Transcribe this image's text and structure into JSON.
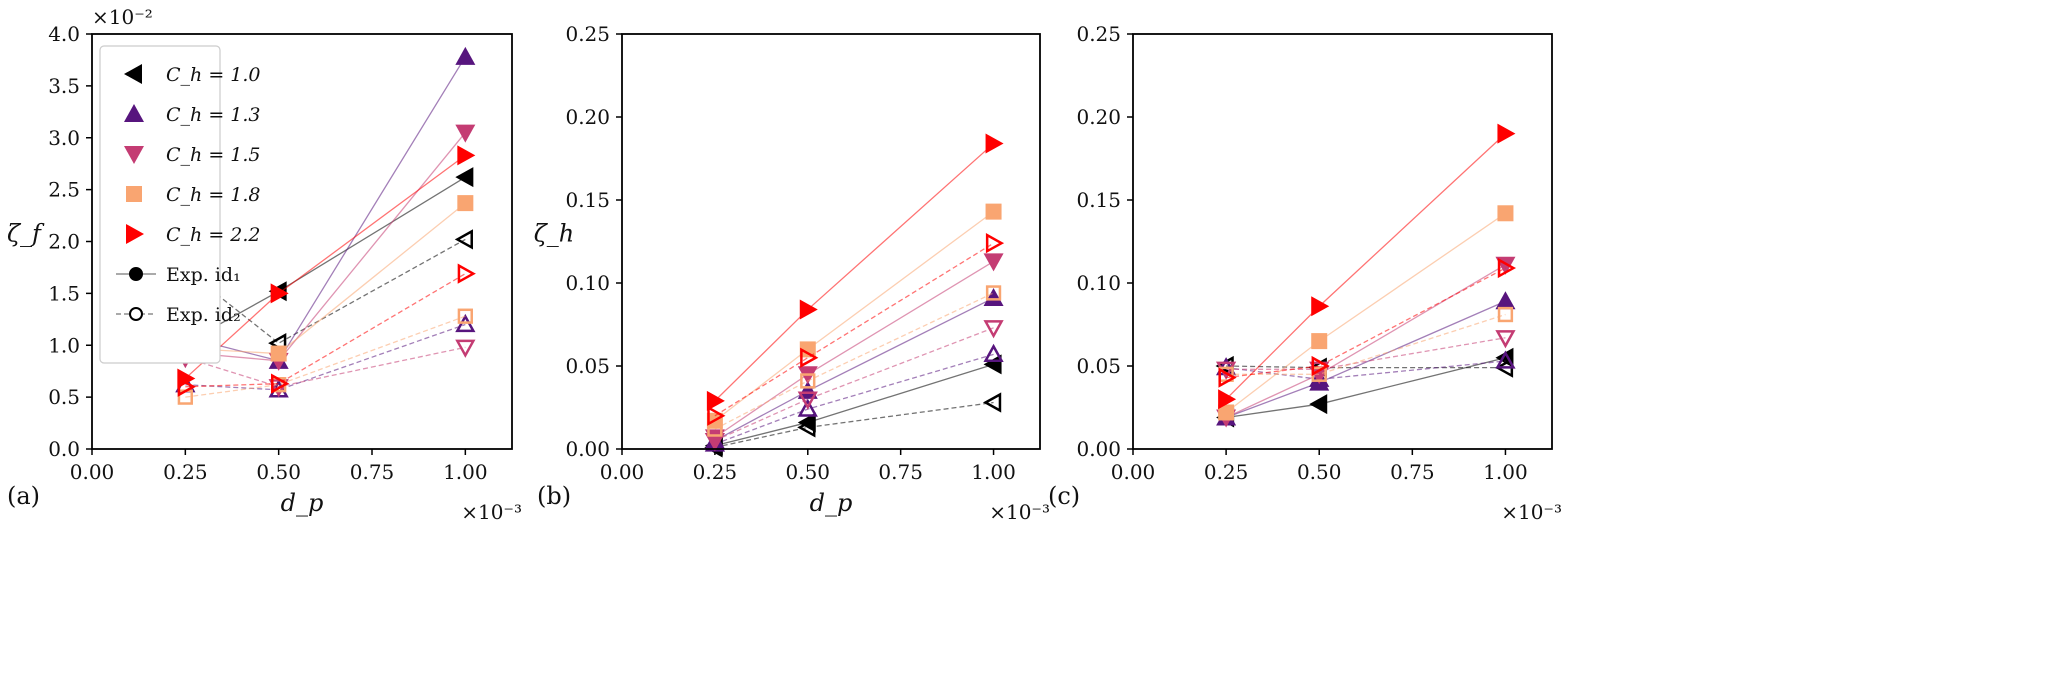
{
  "chart_data": [
    {
      "type": "line",
      "panel_label": "(a)",
      "xlabel": "d_p",
      "ylabel": "ζ_f",
      "x_offset": "×10⁻³",
      "y_offset": "×10⁻²",
      "xlim": [
        0,
        1.125
      ],
      "ylim": [
        0,
        4.0
      ],
      "xticks": [
        "0.00",
        "0.25",
        "0.50",
        "0.75",
        "1.00"
      ],
      "yticks": [
        "0.0",
        "0.5",
        "1.0",
        "1.5",
        "2.0",
        "2.5",
        "3.0",
        "3.5",
        "4.0"
      ],
      "x": [
        0.25,
        0.5,
        1.0
      ],
      "series": [
        {
          "name": "C_h = 1.0",
          "id1": [
            1.02,
            1.52,
            2.62
          ],
          "id2": [
            1.73,
            1.02,
            2.02
          ]
        },
        {
          "name": "C_h = 1.3",
          "id1": [
            1.08,
            0.85,
            3.78
          ],
          "id2": [
            0.62,
            0.57,
            1.2
          ]
        },
        {
          "name": "C_h = 1.5",
          "id1": [
            0.93,
            0.85,
            3.05
          ],
          "id2": [
            0.88,
            0.6,
            0.98
          ]
        },
        {
          "name": "C_h = 1.8",
          "id1": [
            0.97,
            0.92,
            2.37
          ],
          "id2": [
            0.5,
            0.62,
            1.28
          ]
        },
        {
          "name": "C_h = 2.2",
          "id1": [
            0.68,
            1.5,
            2.83
          ],
          "id2": [
            0.6,
            0.63,
            1.69
          ]
        }
      ],
      "legend": {
        "placement": "top-left",
        "entries": [
          "C_h = 1.0",
          "C_h = 1.3",
          "C_h = 1.5",
          "C_h = 1.8",
          "C_h = 2.2",
          "Exp. id₁",
          "Exp. id₂"
        ]
      }
    },
    {
      "type": "line",
      "panel_label": "(b)",
      "xlabel": "d_p",
      "ylabel": "ζ_h",
      "x_offset": "×10⁻³",
      "xlim": [
        0,
        1.125
      ],
      "ylim": [
        0,
        0.25
      ],
      "xticks": [
        "0.00",
        "0.25",
        "0.50",
        "0.75",
        "1.00"
      ],
      "yticks": [
        "0.00",
        "0.05",
        "0.10",
        "0.15",
        "0.20",
        "0.25"
      ],
      "x": [
        0.25,
        0.5,
        1.0
      ],
      "series": [
        {
          "name": "C_h = 1.0",
          "id1": [
            0.002,
            0.016,
            0.051
          ],
          "id2": [
            0.001,
            0.013,
            0.028
          ]
        },
        {
          "name": "C_h = 1.3",
          "id1": [
            0.005,
            0.035,
            0.091
          ],
          "id2": [
            0.003,
            0.024,
            0.057
          ]
        },
        {
          "name": "C_h = 1.5",
          "id1": [
            0.007,
            0.045,
            0.113
          ],
          "id2": [
            0.005,
            0.03,
            0.073
          ]
        },
        {
          "name": "C_h = 1.8",
          "id1": [
            0.017,
            0.06,
            0.143
          ],
          "id2": [
            0.012,
            0.041,
            0.094
          ]
        },
        {
          "name": "C_h = 2.2",
          "id1": [
            0.029,
            0.084,
            0.184
          ],
          "id2": [
            0.02,
            0.055,
            0.124
          ]
        }
      ]
    },
    {
      "type": "line",
      "panel_label": "(c)",
      "xlabel": "",
      "ylabel": "",
      "x_offset": "×10⁻³",
      "xlim": [
        0,
        1.125
      ],
      "ylim": [
        0,
        0.25
      ],
      "xticks": [
        "0.00",
        "0.25",
        "0.50",
        "0.75",
        "1.00"
      ],
      "yticks": [
        "0.00",
        "0.05",
        "0.10",
        "0.15",
        "0.20",
        "0.25"
      ],
      "x": [
        0.25,
        0.5,
        1.0
      ],
      "series": [
        {
          "name": "C_h = 1.0",
          "id1": [
            0.019,
            0.027,
            0.055
          ],
          "id2": [
            0.05,
            0.049,
            0.049
          ]
        },
        {
          "name": "C_h = 1.3",
          "id1": [
            0.019,
            0.04,
            0.089
          ],
          "id2": [
            0.049,
            0.042,
            0.053
          ]
        },
        {
          "name": "C_h = 1.5",
          "id1": [
            0.019,
            0.045,
            0.111
          ],
          "id2": [
            0.048,
            0.048,
            0.067
          ]
        },
        {
          "name": "C_h = 1.8",
          "id1": [
            0.022,
            0.065,
            0.142
          ],
          "id2": [
            0.045,
            0.045,
            0.081
          ]
        },
        {
          "name": "C_h = 2.2",
          "id1": [
            0.03,
            0.086,
            0.19
          ],
          "id2": [
            0.043,
            0.05,
            0.109
          ]
        }
      ]
    }
  ],
  "colors": [
    "#000000",
    "#57157e",
    "#c43c73",
    "#f9a571",
    "#ff0000"
  ],
  "markers": [
    "left",
    "up",
    "down",
    "square",
    "right"
  ]
}
